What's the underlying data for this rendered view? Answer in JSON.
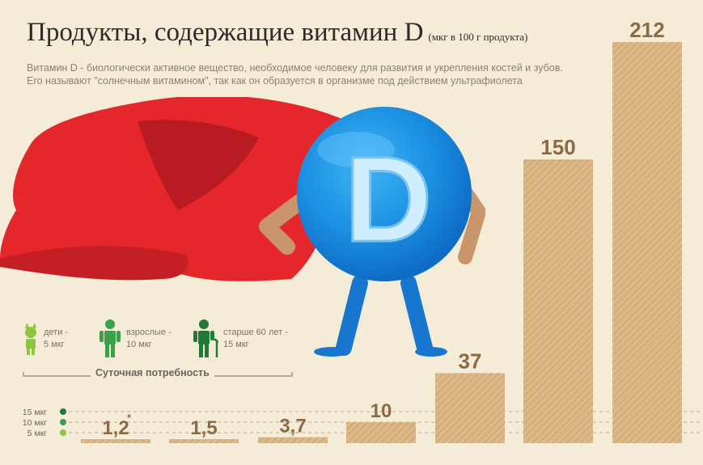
{
  "header": {
    "title": "Продукты, содержащие витамин D",
    "unit": "(мкг в 100 г продукта)",
    "description_line1": "Витамин D - биологически активное вещество, необходимое человеку для развития и укрепления костей и зубов.",
    "description_line2": "Его называют \"солнечным витамином\", так как он образуется в организме под действием ультрафиолета"
  },
  "hero": {
    "letter": "D"
  },
  "legend": {
    "items": [
      {
        "line1": "дети -",
        "line2": "5 мкг",
        "color": "#8cc63f",
        "icon": "child-icon"
      },
      {
        "line1": "взрослые -",
        "line2": "10 мкг",
        "color": "#3aa14a",
        "icon": "adult-icon"
      },
      {
        "line1": "старше 60 лет -",
        "line2": "15 мкг",
        "color": "#1e7a36",
        "icon": "elder-icon"
      }
    ],
    "caption": "Суточная потребность"
  },
  "chart_data": {
    "type": "bar",
    "values": [
      1.2,
      1.5,
      3.7,
      10,
      37,
      150,
      212
    ],
    "labels": [
      "1,2",
      "1,5",
      "3,7",
      "10",
      "37",
      "150",
      "212"
    ],
    "footnote_mark": "*",
    "reference_lines": [
      {
        "label": "15 мкг",
        "value": 15,
        "color": "#1e7a36"
      },
      {
        "label": "10 мкг",
        "value": 10,
        "color": "#3aa14a"
      },
      {
        "label": "5 мкг",
        "value": 5,
        "color": "#8cc63f"
      }
    ],
    "bar_color": "#dcb887"
  }
}
